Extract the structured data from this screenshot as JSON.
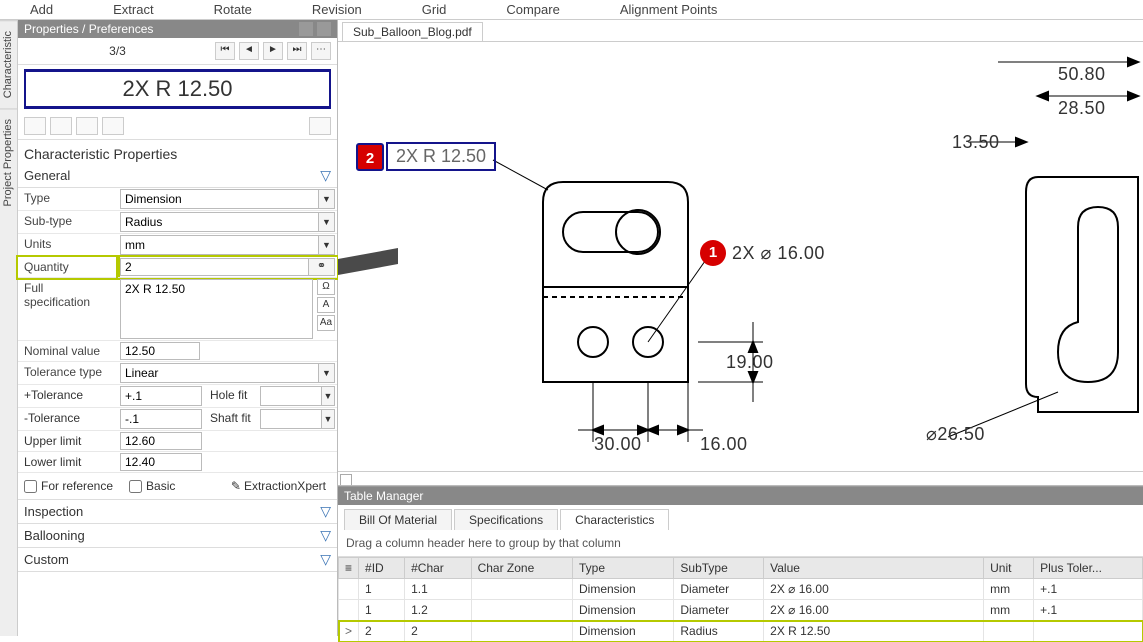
{
  "menubar": [
    "Add",
    "Extract",
    "Rotate",
    "Revision",
    "Grid",
    "Compare",
    "Alignment Points"
  ],
  "sidebar": {
    "title": "Properties / Preferences",
    "pageText": "3/3",
    "bigCallout": "2X R 12.50",
    "sectionTitle": "Characteristic Properties",
    "sections": {
      "general": "General",
      "inspection": "Inspection",
      "ballooning": "Ballooning",
      "custom": "Custom"
    },
    "props": {
      "typeLabel": "Type",
      "typeValue": "Dimension",
      "subTypeLabel": "Sub-type",
      "subTypeValue": "Radius",
      "unitsLabel": "Units",
      "unitsValue": "mm",
      "quantityLabel": "Quantity",
      "quantityValue": "2",
      "fullSpecLabel": "Full specification",
      "fullSpecValue": "2X R 12.50",
      "nominalLabel": "Nominal value",
      "nominalValue": "12.50",
      "tolTypeLabel": "Tolerance type",
      "tolTypeValue": "Linear",
      "plusTolLabel": "+Tolerance",
      "plusTolValue": "+.1",
      "holeFitLabel": "Hole fit",
      "holeFitValue": "",
      "minusTolLabel": "-Tolerance",
      "minusTolValue": "-.1",
      "shaftFitLabel": "Shaft fit",
      "shaftFitValue": "",
      "upperLabel": "Upper limit",
      "upperValue": "12.60",
      "lowerLabel": "Lower limit",
      "lowerValue": "12.40",
      "forRefLabel": "For reference",
      "basicLabel": "Basic",
      "extractionXpert": "ExtractionXpert"
    }
  },
  "docTab": "Sub_Balloon_Blog.pdf",
  "drawing": {
    "callout2Label": "2",
    "callout2Text": "2X R 12.50",
    "callout1Label": "1",
    "callout1Text": "2X ⌀ 16.00",
    "dim_50_80": "50.80",
    "dim_28_50": "28.50",
    "dim_13_50": "13.50",
    "dim_19_00": "19.00",
    "dim_30_00": "30.00",
    "dim_16_00": "16.00",
    "dim_diam_26_50": "⌀26.50"
  },
  "tableManager": {
    "title": "Table Manager",
    "tabs": {
      "bom": "Bill Of Material",
      "specs": "Specifications",
      "chars": "Characteristics"
    },
    "groupHint": "Drag a column header here to group by that column",
    "headers": {
      "id": "#ID",
      "char": "#Char",
      "zone": "Char Zone",
      "type": "Type",
      "subtype": "SubType",
      "value": "Value",
      "unit": "Unit",
      "plustol": "Plus Toler..."
    },
    "rows": [
      {
        "handle": "",
        "id": "1",
        "char": "1.1",
        "zone": "",
        "type": "Dimension",
        "subtype": "Diameter",
        "value": "2X ⌀ 16.00",
        "unit": "mm",
        "plustol": "+.1",
        "hl": false
      },
      {
        "handle": "",
        "id": "1",
        "char": "1.2",
        "zone": "",
        "type": "Dimension",
        "subtype": "Diameter",
        "value": "2X ⌀ 16.00",
        "unit": "mm",
        "plustol": "+.1",
        "hl": false
      },
      {
        "handle": ">",
        "id": "2",
        "char": "2",
        "zone": "",
        "type": "Dimension",
        "subtype": "Radius",
        "value": "2X R 12.50",
        "unit": "",
        "plustol": "",
        "hl": true
      }
    ]
  }
}
